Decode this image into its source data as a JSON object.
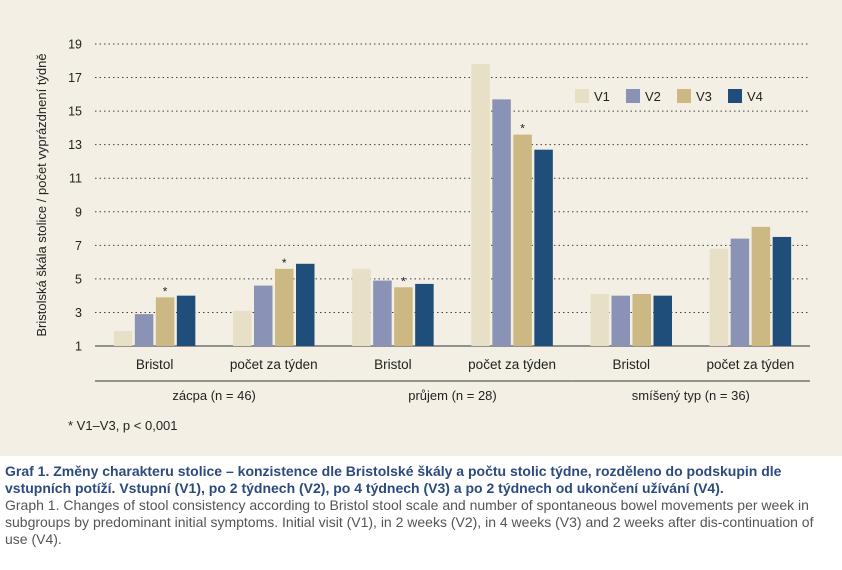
{
  "chart_data": {
    "type": "bar",
    "ylabel": "Bristolská škála stolice / počet vyprázdnení týdně",
    "ylim": [
      1,
      19
    ],
    "yticks": [
      1,
      3,
      5,
      7,
      9,
      11,
      13,
      15,
      17,
      19
    ],
    "grid": true,
    "legend_position": "top-right",
    "categories": [
      "Bristol",
      "počet za týden",
      "Bristol",
      "počet za týden",
      "Bristol",
      "počet za týden"
    ],
    "groups": [
      {
        "label": "zácpa (n = 46)",
        "span": [
          0,
          1
        ]
      },
      {
        "label": "průjem (n = 28)",
        "span": [
          2,
          3
        ]
      },
      {
        "label": "smíšený typ (n = 36)",
        "span": [
          4,
          5
        ]
      }
    ],
    "series": [
      {
        "name": "V1",
        "color": "#e7dfc6",
        "values": [
          1.9,
          3.1,
          5.6,
          17.8,
          4.1,
          6.8
        ]
      },
      {
        "name": "V2",
        "color": "#8a92b5",
        "values": [
          2.9,
          4.6,
          4.9,
          15.7,
          4.0,
          7.4
        ]
      },
      {
        "name": "V3",
        "color": "#cbb882",
        "values": [
          3.9,
          5.6,
          4.5,
          13.6,
          4.1,
          8.1
        ]
      },
      {
        "name": "V4",
        "color": "#1f4e7a",
        "values": [
          4.0,
          5.9,
          4.7,
          12.7,
          4.0,
          7.5
        ]
      }
    ],
    "annotations": [
      {
        "text": "*",
        "category_index": 0,
        "series_index": 2
      },
      {
        "text": "*",
        "category_index": 1,
        "series_index": 2
      },
      {
        "text": "*",
        "category_index": 2,
        "series_index": 2
      },
      {
        "text": "*",
        "category_index": 3,
        "series_index": 2
      }
    ]
  },
  "footnote": "* V1–V3, p < 0,001",
  "caption": {
    "cs": "Graf 1. Změny charakteru stolice – konzistence dle Bristolské škály a počtu stolic týdne, rozděleno do podskupin dle vstupních potíží. Vstupní (V1), po 2 týdnech (V2), po 4 týdnech (V3) a po 2 týdnech od ukončení užívání (V4).",
    "en": "Graph 1. Changes of stool consistency according to Bristol stool scale and number of spontaneous bowel movements per week in subgroups by predominant initial symptoms. Initial visit (V1), in 2 weeks (V2), in 4 weeks (V3) and 2 weeks after dis-continuation of use (V4)."
  }
}
